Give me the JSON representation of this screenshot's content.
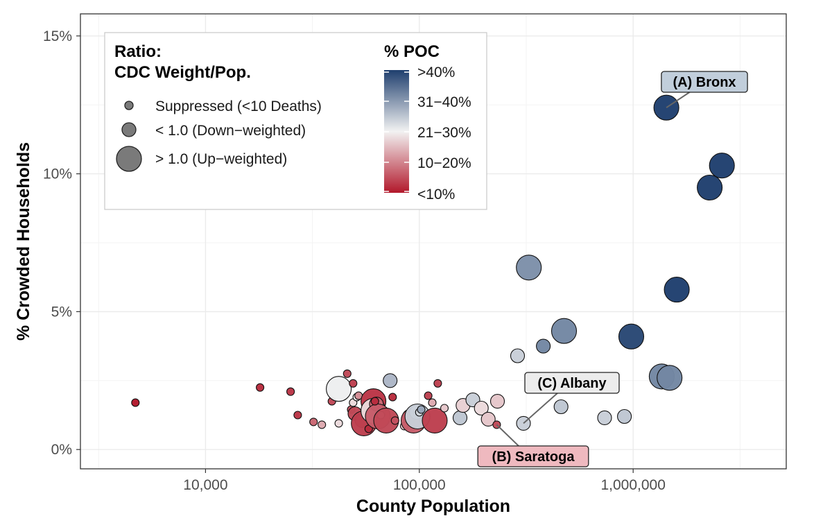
{
  "chart_data": {
    "type": "scatter",
    "xlabel": "County Population",
    "ylabel": "% Crowded Households",
    "x_scale": "log10",
    "xlim": [
      2600,
      5200000
    ],
    "ylim": [
      -0.7,
      15.8
    ],
    "grid": true,
    "x_ticks": [
      {
        "value": 10000,
        "label": "10,000"
      },
      {
        "value": 100000,
        "label": "100,000"
      },
      {
        "value": 1000000,
        "label": "1,000,000"
      }
    ],
    "y_ticks": [
      {
        "value": 0,
        "label": "0%"
      },
      {
        "value": 5,
        "label": "5%"
      },
      {
        "value": 10,
        "label": "10%"
      },
      {
        "value": 15,
        "label": "15%"
      }
    ],
    "size_legend": {
      "title_line1": "Ratio:",
      "title_line2": "CDC Weight/Pop.",
      "entries": [
        {
          "label": "Suppressed (<10 Deaths)",
          "size_class": "small"
        },
        {
          "label": "< 1.0 (Down−weighted)",
          "size_class": "medium"
        },
        {
          "label": "> 1.0 (Up−weighted)",
          "size_class": "large"
        }
      ]
    },
    "color_legend": {
      "title": "% POC",
      "labels": [
        ">40%",
        "31−40%",
        "21−30%",
        "10−20%",
        "<10%"
      ],
      "color_low": "#b2182b",
      "color_mid": "#f2f2f2",
      "color_high": "#1f3f6e"
    },
    "annotations": [
      {
        "label": "(A) Bronx",
        "x": 1430000,
        "y": 12.4,
        "fill": "#c1cedb"
      },
      {
        "label": "(B) Saratoga",
        "x": 230000,
        "y": 0.9,
        "fill": "#efb9bf"
      },
      {
        "label": "(C) Albany",
        "x": 307000,
        "y": 0.95,
        "fill": "#ececec"
      }
    ],
    "points": [
      {
        "x": 4700,
        "y": 1.7,
        "size": "small",
        "poc": 0.0
      },
      {
        "x": 18000,
        "y": 2.25,
        "size": "small",
        "poc": 0.02
      },
      {
        "x": 25000,
        "y": 2.1,
        "size": "small",
        "poc": 0.03
      },
      {
        "x": 27000,
        "y": 1.25,
        "size": "small",
        "poc": 0.03
      },
      {
        "x": 32000,
        "y": 1.0,
        "size": "small",
        "poc": 0.08
      },
      {
        "x": 35000,
        "y": 0.9,
        "size": "small",
        "poc": 0.15
      },
      {
        "x": 39000,
        "y": 1.75,
        "size": "small",
        "poc": 0.05
      },
      {
        "x": 42000,
        "y": 0.95,
        "size": "small",
        "poc": 0.2
      },
      {
        "x": 42000,
        "y": 2.2,
        "size": "large",
        "poc": 0.23
      },
      {
        "x": 46000,
        "y": 2.75,
        "size": "small",
        "poc": 0.05
      },
      {
        "x": 49000,
        "y": 2.4,
        "size": "small",
        "poc": 0.04
      },
      {
        "x": 48000,
        "y": 1.45,
        "size": "small",
        "poc": 0.06
      },
      {
        "x": 49000,
        "y": 1.7,
        "size": "small",
        "poc": 0.2
      },
      {
        "x": 51000,
        "y": 1.9,
        "size": "small",
        "poc": 0.22
      },
      {
        "x": 52000,
        "y": 1.95,
        "size": "small",
        "poc": 0.12
      },
      {
        "x": 50000,
        "y": 1.3,
        "size": "medium",
        "poc": 0.05
      },
      {
        "x": 54000,
        "y": 1.05,
        "size": "medium",
        "poc": 0.06
      },
      {
        "x": 55000,
        "y": 0.95,
        "size": "large",
        "poc": 0.04
      },
      {
        "x": 58000,
        "y": 0.75,
        "size": "small",
        "poc": 0.02
      },
      {
        "x": 61000,
        "y": 1.75,
        "size": "large",
        "poc": 0.03
      },
      {
        "x": 61000,
        "y": 1.4,
        "size": "large",
        "poc": 0.2
      },
      {
        "x": 63000,
        "y": 1.65,
        "size": "medium",
        "poc": 0.08
      },
      {
        "x": 64000,
        "y": 1.2,
        "size": "large",
        "poc": 0.07
      },
      {
        "x": 66000,
        "y": 1.25,
        "size": "small",
        "poc": 0.18
      },
      {
        "x": 62000,
        "y": 1.75,
        "size": "small",
        "poc": 0.02
      },
      {
        "x": 70000,
        "y": 1.05,
        "size": "large",
        "poc": 0.05
      },
      {
        "x": 73000,
        "y": 2.5,
        "size": "medium",
        "poc": 0.3
      },
      {
        "x": 75000,
        "y": 1.9,
        "size": "small",
        "poc": 0.02
      },
      {
        "x": 77000,
        "y": 1.05,
        "size": "small",
        "poc": 0.06
      },
      {
        "x": 85000,
        "y": 0.85,
        "size": "small",
        "poc": 0.18
      },
      {
        "x": 90000,
        "y": 1.2,
        "size": "medium",
        "poc": 0.1
      },
      {
        "x": 94000,
        "y": 1.05,
        "size": "large",
        "poc": 0.07
      },
      {
        "x": 97000,
        "y": 1.35,
        "size": "medium",
        "poc": 0.22
      },
      {
        "x": 98000,
        "y": 1.2,
        "size": "large",
        "poc": 0.27
      },
      {
        "x": 100000,
        "y": 1.35,
        "size": "small",
        "poc": 0.26
      },
      {
        "x": 102000,
        "y": 1.45,
        "size": "small",
        "poc": 0.32
      },
      {
        "x": 110000,
        "y": 1.95,
        "size": "small",
        "poc": 0.04
      },
      {
        "x": 115000,
        "y": 1.7,
        "size": "small",
        "poc": 0.15
      },
      {
        "x": 118000,
        "y": 1.05,
        "size": "large",
        "poc": 0.04
      },
      {
        "x": 122000,
        "y": 2.4,
        "size": "small",
        "poc": 0.04
      },
      {
        "x": 131000,
        "y": 1.5,
        "size": "small",
        "poc": 0.18
      },
      {
        "x": 155000,
        "y": 1.15,
        "size": "medium",
        "poc": 0.28
      },
      {
        "x": 160000,
        "y": 1.6,
        "size": "medium",
        "poc": 0.19
      },
      {
        "x": 178000,
        "y": 1.8,
        "size": "medium",
        "poc": 0.27
      },
      {
        "x": 195000,
        "y": 1.5,
        "size": "medium",
        "poc": 0.2
      },
      {
        "x": 210000,
        "y": 1.1,
        "size": "medium",
        "poc": 0.18
      },
      {
        "x": 230000,
        "y": 0.9,
        "size": "small",
        "poc": 0.05
      },
      {
        "x": 232000,
        "y": 1.75,
        "size": "medium",
        "poc": 0.18
      },
      {
        "x": 288000,
        "y": 3.4,
        "size": "medium",
        "poc": 0.27
      },
      {
        "x": 307000,
        "y": 0.95,
        "size": "medium",
        "poc": 0.27
      },
      {
        "x": 325000,
        "y": 6.6,
        "size": "large",
        "poc": 0.35
      },
      {
        "x": 380000,
        "y": 3.75,
        "size": "medium",
        "poc": 0.36
      },
      {
        "x": 460000,
        "y": 1.55,
        "size": "medium",
        "poc": 0.28
      },
      {
        "x": 475000,
        "y": 4.3,
        "size": "large",
        "poc": 0.36
      },
      {
        "x": 735000,
        "y": 1.15,
        "size": "medium",
        "poc": 0.27
      },
      {
        "x": 910000,
        "y": 1.2,
        "size": "medium",
        "poc": 0.28
      },
      {
        "x": 980000,
        "y": 4.1,
        "size": "large",
        "poc": 0.44
      },
      {
        "x": 1360000,
        "y": 2.65,
        "size": "large",
        "poc": 0.36
      },
      {
        "x": 1480000,
        "y": 2.6,
        "size": "large",
        "poc": 0.36
      },
      {
        "x": 1430000,
        "y": 12.4,
        "size": "large",
        "poc": 0.46
      },
      {
        "x": 1600000,
        "y": 5.8,
        "size": "large",
        "poc": 0.45
      },
      {
        "x": 2280000,
        "y": 9.5,
        "size": "large",
        "poc": 0.46
      },
      {
        "x": 2600000,
        "y": 10.3,
        "size": "large",
        "poc": 0.46
      }
    ]
  }
}
